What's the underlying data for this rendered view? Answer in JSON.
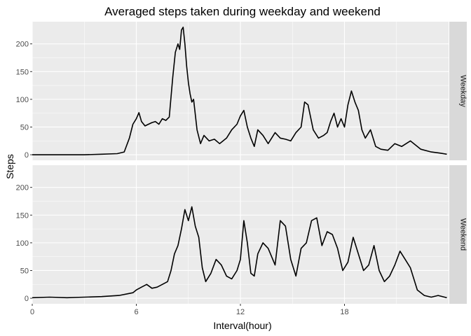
{
  "chart_data": {
    "type": "line",
    "title": "Averaged steps taken during weekday and weekend",
    "xlabel": "Interval(hour)",
    "ylabel": "Steps",
    "xlim": [
      0,
      24
    ],
    "ylim": [
      -10,
      240
    ],
    "x_ticks": [
      0,
      6,
      12,
      18
    ],
    "x_tick_labels": [
      "0",
      "6",
      "12",
      "18"
    ],
    "y_ticks": [
      0,
      50,
      100,
      150,
      200
    ],
    "y_tick_labels": [
      "0",
      "50",
      "100",
      "150",
      "200"
    ],
    "grid": true,
    "facet_layout": "vertical",
    "strip_position": "right",
    "colors": {
      "panel_bg": "#ebebeb",
      "grid_major": "#ffffff",
      "strip_bg": "#d9d9d9",
      "line": "#000000"
    },
    "facets": [
      {
        "label": "Weekday",
        "series": [
          {
            "x": [
              0,
              1,
              2,
              3,
              4,
              4.9,
              5.3,
              5.6,
              5.8,
              6.0,
              6.15,
              6.3,
              6.5,
              6.7,
              6.9,
              7.1,
              7.3,
              7.5,
              7.7,
              7.9,
              8.1,
              8.25,
              8.4,
              8.5,
              8.6,
              8.7,
              8.8,
              8.9,
              9.0,
              9.1,
              9.2,
              9.3,
              9.5,
              9.7,
              9.9,
              10.2,
              10.5,
              10.8,
              11.2,
              11.5,
              11.8,
              12.0,
              12.2,
              12.4,
              12.6,
              12.8,
              13.0,
              13.3,
              13.6,
              14.0,
              14.3,
              14.6,
              14.9,
              15.2,
              15.5,
              15.7,
              15.9,
              16.2,
              16.5,
              16.8,
              17.0,
              17.2,
              17.4,
              17.6,
              17.8,
              18.0,
              18.2,
              18.4,
              18.6,
              18.8,
              19.0,
              19.2,
              19.5,
              19.8,
              20.1,
              20.5,
              20.9,
              21.3,
              21.8,
              22.4,
              23.0,
              23.5,
              23.9
            ],
            "y": [
              0,
              0,
              0,
              0,
              1,
              2,
              5,
              30,
              55,
              65,
              76,
              60,
              52,
              55,
              58,
              60,
              55,
              65,
              62,
              68,
              140,
              185,
              200,
              190,
              225,
              230,
              200,
              160,
              130,
              110,
              95,
              100,
              45,
              20,
              35,
              25,
              28,
              20,
              30,
              45,
              55,
              70,
              80,
              50,
              30,
              15,
              45,
              35,
              20,
              40,
              30,
              28,
              25,
              40,
              50,
              95,
              90,
              45,
              30,
              35,
              40,
              60,
              75,
              50,
              65,
              50,
              90,
              115,
              95,
              80,
              45,
              30,
              45,
              15,
              10,
              8,
              20,
              15,
              25,
              10,
              5,
              3,
              1
            ]
          }
        ]
      },
      {
        "label": "Weekend",
        "series": [
          {
            "x": [
              0,
              1,
              2,
              3,
              4,
              5.0,
              5.5,
              5.8,
              6.0,
              6.3,
              6.6,
              6.9,
              7.2,
              7.5,
              7.8,
              8.0,
              8.2,
              8.4,
              8.6,
              8.8,
              9.0,
              9.2,
              9.4,
              9.6,
              9.8,
              10.0,
              10.3,
              10.6,
              10.9,
              11.2,
              11.5,
              11.8,
              12.0,
              12.2,
              12.4,
              12.6,
              12.8,
              13.0,
              13.3,
              13.6,
              14.0,
              14.3,
              14.6,
              14.9,
              15.2,
              15.5,
              15.8,
              16.1,
              16.4,
              16.7,
              17.0,
              17.3,
              17.6,
              17.9,
              18.2,
              18.5,
              18.8,
              19.1,
              19.4,
              19.7,
              20.0,
              20.3,
              20.6,
              20.9,
              21.2,
              21.5,
              21.8,
              22.2,
              22.6,
              23.0,
              23.4,
              23.9
            ],
            "y": [
              1,
              2,
              1,
              2,
              3,
              5,
              8,
              10,
              15,
              20,
              25,
              18,
              20,
              25,
              30,
              50,
              80,
              95,
              125,
              160,
              140,
              165,
              130,
              110,
              55,
              30,
              45,
              70,
              60,
              40,
              35,
              50,
              70,
              140,
              100,
              45,
              40,
              80,
              100,
              90,
              60,
              140,
              130,
              70,
              40,
              90,
              100,
              140,
              145,
              95,
              120,
              115,
              90,
              50,
              65,
              110,
              80,
              50,
              60,
              95,
              50,
              30,
              40,
              60,
              85,
              70,
              55,
              15,
              5,
              2,
              5,
              1
            ]
          }
        ]
      }
    ]
  }
}
